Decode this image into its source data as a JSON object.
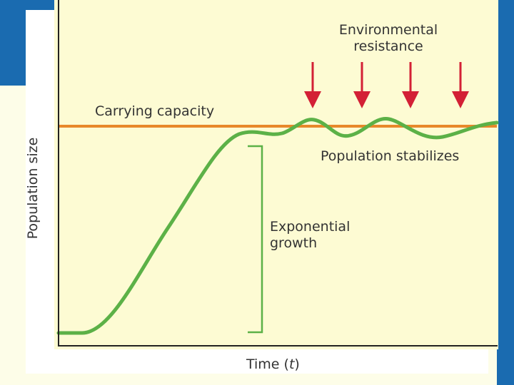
{
  "figure": {
    "labels": {
      "carrying_capacity": "Carrying capacity",
      "environmental_resistance_line1": "Environmental",
      "environmental_resistance_line2": "resistance",
      "population_stabilizes": "Population stabilizes",
      "exponential_growth_line1": "Exponential",
      "exponential_growth_line2": "growth",
      "y_axis": "Population size",
      "x_axis_prefix": "Time (",
      "x_axis_var": "t",
      "x_axis_suffix": ")"
    },
    "colors": {
      "curve": "#5cb147",
      "carrying_capacity": "#e8882a",
      "arrow": "#d32035",
      "axis": "#222222",
      "bracket": "#5cb147",
      "slide_band": "#1a6bb0",
      "figure_bg": "#fdfbd3"
    },
    "environmental_resistance_arrow_count": 4
  }
}
